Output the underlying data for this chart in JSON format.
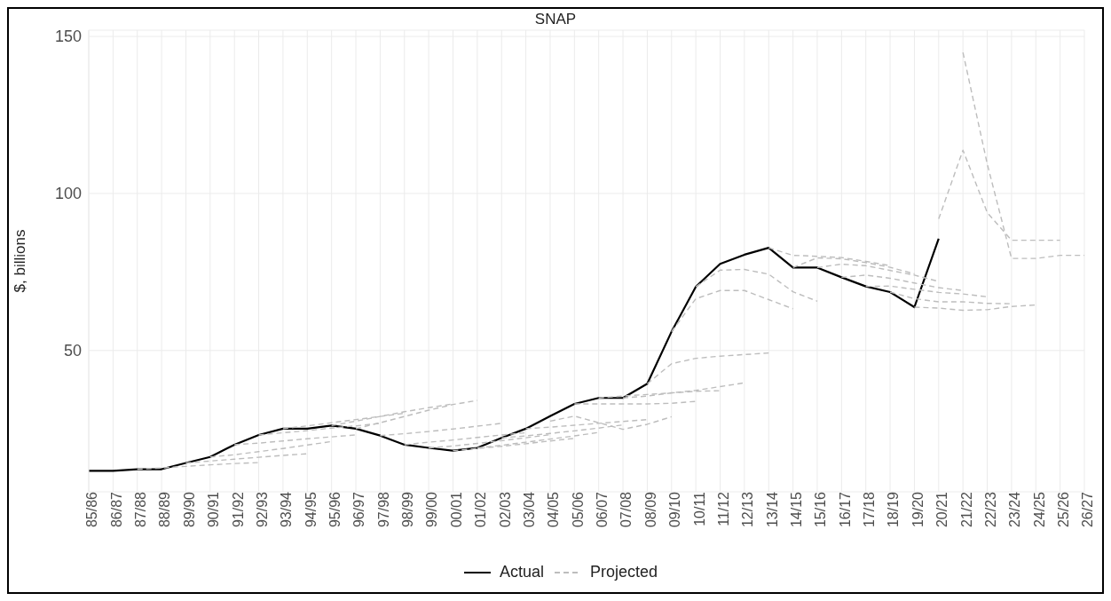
{
  "chart_data": {
    "type": "line",
    "title": "SNAP",
    "ylabel": "$, billions",
    "categories": [
      "85/86",
      "86/87",
      "87/88",
      "88/89",
      "89/90",
      "90/91",
      "91/92",
      "92/93",
      "93/94",
      "94/95",
      "95/96",
      "96/97",
      "97/98",
      "98/99",
      "99/00",
      "00/01",
      "01/02",
      "02/03",
      "03/04",
      "04/05",
      "05/06",
      "06/07",
      "07/08",
      "08/09",
      "09/10",
      "10/11",
      "11/12",
      "12/13",
      "13/14",
      "14/15",
      "15/16",
      "16/17",
      "17/18",
      "18/19",
      "19/20",
      "20/21",
      "21/22",
      "22/23",
      "23/24",
      "24/25",
      "25/26",
      "26/27"
    ],
    "ylim": [
      5,
      152
    ],
    "yticks": [
      50,
      100,
      150
    ],
    "grid": true,
    "legend": "bottom",
    "marker": "none",
    "series": [
      {
        "name": "Actual",
        "color": "#000000",
        "line_style": "solid",
        "values": [
          11.7,
          11.7,
          12.2,
          12.2,
          14.2,
          16.1,
          20.0,
          23.1,
          25.1,
          25.1,
          26.1,
          25.1,
          22.9,
          20.0,
          19.0,
          18.1,
          19.0,
          22.2,
          25.1,
          29.1,
          33.0,
          34.9,
          34.9,
          39.4,
          56.0,
          70.3,
          77.6,
          80.5,
          82.7,
          76.4,
          76.4,
          73.3,
          70.4,
          68.6,
          63.8,
          85.6,
          null,
          null,
          null,
          null,
          null,
          null
        ]
      },
      {
        "name": "Projected",
        "color": "#bdbdbd",
        "line_style": "dashed",
        "values": [
          null,
          null,
          12.2,
          12.6,
          13.1,
          13.6,
          14.0,
          14.3,
          null,
          null,
          null,
          null,
          null,
          null,
          null,
          null,
          null,
          null,
          null,
          null,
          null,
          null,
          null,
          null,
          null,
          null,
          null,
          null,
          null,
          null,
          null,
          null,
          null,
          null,
          null,
          null,
          null,
          null,
          null,
          null,
          null,
          null
        ]
      },
      {
        "color": "#bdbdbd",
        "line_style": "dashed",
        "values": [
          null,
          null,
          null,
          null,
          14.2,
          14.8,
          15.4,
          16.0,
          16.6,
          17.1,
          null,
          null,
          null,
          null,
          null,
          null,
          null,
          null,
          null,
          null,
          null,
          null,
          null,
          null,
          null,
          null,
          null,
          null,
          null,
          null,
          null,
          null,
          null,
          null,
          null,
          null,
          null,
          null,
          null,
          null,
          null,
          null
        ]
      },
      {
        "color": "#bdbdbd",
        "line_style": "dashed",
        "values": [
          null,
          null,
          null,
          null,
          null,
          16.1,
          16.8,
          17.8,
          18.8,
          19.9,
          21.0,
          null,
          null,
          null,
          null,
          null,
          null,
          null,
          null,
          null,
          null,
          null,
          null,
          null,
          null,
          null,
          null,
          null,
          null,
          null,
          null,
          null,
          null,
          null,
          null,
          null,
          null,
          null,
          null,
          null,
          null,
          null
        ]
      },
      {
        "color": "#bdbdbd",
        "line_style": "dashed",
        "values": [
          null,
          null,
          null,
          null,
          null,
          null,
          20.0,
          20.5,
          21.2,
          21.9,
          22.5,
          23.1,
          null,
          null,
          null,
          null,
          null,
          null,
          null,
          null,
          null,
          null,
          null,
          null,
          null,
          null,
          null,
          null,
          null,
          null,
          null,
          null,
          null,
          null,
          null,
          null,
          null,
          null,
          null,
          null,
          null,
          null
        ]
      },
      {
        "color": "#bdbdbd",
        "line_style": "dashed",
        "values": [
          null,
          null,
          null,
          null,
          null,
          null,
          null,
          23.1,
          23.8,
          24.5,
          25.3,
          26.0,
          26.8,
          null,
          null,
          null,
          null,
          null,
          null,
          null,
          null,
          null,
          null,
          null,
          null,
          null,
          null,
          null,
          null,
          null,
          null,
          null,
          null,
          null,
          null,
          null,
          null,
          null,
          null,
          null,
          null,
          null
        ]
      },
      {
        "color": "#bdbdbd",
        "line_style": "dashed",
        "values": [
          null,
          null,
          null,
          null,
          null,
          null,
          null,
          null,
          25.1,
          26.0,
          27.0,
          28.0,
          29.0,
          30.0,
          null,
          null,
          null,
          null,
          null,
          null,
          null,
          null,
          null,
          null,
          null,
          null,
          null,
          null,
          null,
          null,
          null,
          null,
          null,
          null,
          null,
          null,
          null,
          null,
          null,
          null,
          null,
          null
        ]
      },
      {
        "color": "#bdbdbd",
        "line_style": "dashed",
        "values": [
          null,
          null,
          null,
          null,
          null,
          null,
          null,
          null,
          null,
          null,
          26.1,
          27.5,
          29.0,
          30.5,
          31.8,
          33.0,
          null,
          null,
          null,
          null,
          null,
          null,
          null,
          null,
          null,
          null,
          null,
          null,
          null,
          null,
          null,
          null,
          null,
          null,
          null,
          null,
          null,
          null,
          null,
          null,
          null,
          null
        ]
      },
      {
        "color": "#bdbdbd",
        "line_style": "dashed",
        "values": [
          null,
          null,
          null,
          null,
          null,
          null,
          null,
          null,
          null,
          null,
          null,
          25.1,
          27.0,
          29.0,
          31.0,
          32.8,
          34.1,
          null,
          null,
          null,
          null,
          null,
          null,
          null,
          null,
          null,
          null,
          null,
          null,
          null,
          null,
          null,
          null,
          null,
          null,
          null,
          null,
          null,
          null,
          null,
          null,
          null
        ]
      },
      {
        "color": "#bdbdbd",
        "line_style": "dashed",
        "values": [
          null,
          null,
          null,
          null,
          null,
          null,
          null,
          null,
          null,
          null,
          null,
          null,
          22.9,
          23.5,
          24.2,
          25.0,
          25.9,
          26.8,
          null,
          null,
          null,
          null,
          null,
          null,
          null,
          null,
          null,
          null,
          null,
          null,
          null,
          null,
          null,
          null,
          null,
          null,
          null,
          null,
          null,
          null,
          null,
          null
        ]
      },
      {
        "color": "#bdbdbd",
        "line_style": "dashed",
        "values": [
          null,
          null,
          null,
          null,
          null,
          null,
          null,
          null,
          null,
          null,
          null,
          null,
          null,
          20.0,
          20.8,
          21.5,
          22.3,
          23.1,
          23.8,
          null,
          null,
          null,
          null,
          null,
          null,
          null,
          null,
          null,
          null,
          null,
          null,
          null,
          null,
          null,
          null,
          null,
          null,
          null,
          null,
          null,
          null,
          null
        ]
      },
      {
        "color": "#bdbdbd",
        "line_style": "dashed",
        "values": [
          null,
          null,
          null,
          null,
          null,
          null,
          null,
          null,
          null,
          null,
          null,
          null,
          null,
          null,
          19.0,
          19.6,
          20.4,
          21.3,
          22.2,
          23.2,
          null,
          null,
          null,
          null,
          null,
          null,
          null,
          null,
          null,
          null,
          null,
          null,
          null,
          null,
          null,
          null,
          null,
          null,
          null,
          null,
          null,
          null
        ]
      },
      {
        "color": "#bdbdbd",
        "line_style": "dashed",
        "values": [
          null,
          null,
          null,
          null,
          null,
          null,
          null,
          null,
          null,
          null,
          null,
          null,
          null,
          null,
          null,
          18.1,
          18.8,
          19.5,
          20.3,
          21.2,
          22.0,
          null,
          null,
          null,
          null,
          null,
          null,
          null,
          null,
          null,
          null,
          null,
          null,
          null,
          null,
          null,
          null,
          null,
          null,
          null,
          null,
          null
        ]
      },
      {
        "color": "#bdbdbd",
        "line_style": "dashed",
        "values": [
          null,
          null,
          null,
          null,
          null,
          null,
          null,
          null,
          null,
          null,
          null,
          null,
          null,
          null,
          null,
          null,
          19.0,
          19.8,
          20.8,
          21.8,
          22.8,
          23.9,
          null,
          null,
          null,
          null,
          null,
          null,
          null,
          null,
          null,
          null,
          null,
          null,
          null,
          null,
          null,
          null,
          null,
          null,
          null,
          null
        ]
      },
      {
        "color": "#bdbdbd",
        "line_style": "dashed",
        "values": [
          null,
          null,
          null,
          null,
          null,
          null,
          null,
          null,
          null,
          null,
          null,
          null,
          null,
          null,
          null,
          null,
          null,
          22.2,
          22.8,
          23.6,
          24.4,
          25.3,
          26.3,
          null,
          null,
          null,
          null,
          null,
          null,
          null,
          null,
          null,
          null,
          null,
          null,
          null,
          null,
          null,
          null,
          null,
          null,
          null
        ]
      },
      {
        "color": "#bdbdbd",
        "line_style": "dashed",
        "values": [
          null,
          null,
          null,
          null,
          null,
          null,
          null,
          null,
          null,
          null,
          null,
          null,
          null,
          null,
          null,
          null,
          null,
          null,
          25.1,
          25.6,
          26.2,
          26.8,
          27.4,
          28.0,
          null,
          null,
          null,
          null,
          null,
          null,
          null,
          null,
          null,
          null,
          null,
          null,
          null,
          null,
          null,
          null,
          null,
          null
        ]
      },
      {
        "color": "#bdbdbd",
        "line_style": "dashed",
        "values": [
          null,
          null,
          null,
          null,
          null,
          null,
          null,
          null,
          null,
          null,
          null,
          null,
          null,
          null,
          null,
          null,
          null,
          null,
          null,
          27.5,
          29.1,
          27.0,
          24.9,
          26.5,
          28.9,
          null,
          null,
          null,
          null,
          null,
          null,
          null,
          null,
          null,
          null,
          null,
          null,
          null,
          null,
          null,
          null,
          null
        ]
      },
      {
        "color": "#bdbdbd",
        "line_style": "dashed",
        "values": [
          null,
          null,
          null,
          null,
          null,
          null,
          null,
          null,
          null,
          null,
          null,
          null,
          null,
          null,
          null,
          null,
          null,
          null,
          null,
          null,
          33.0,
          33.0,
          33.0,
          33.0,
          33.2,
          33.8,
          null,
          null,
          null,
          null,
          null,
          null,
          null,
          null,
          null,
          null,
          null,
          null,
          null,
          null,
          null,
          null
        ]
      },
      {
        "color": "#bdbdbd",
        "line_style": "dashed",
        "values": [
          null,
          null,
          null,
          null,
          null,
          null,
          null,
          null,
          null,
          null,
          null,
          null,
          null,
          null,
          null,
          null,
          null,
          null,
          null,
          null,
          null,
          34.9,
          35.5,
          36.0,
          36.5,
          37.0,
          37.2,
          null,
          null,
          null,
          null,
          null,
          null,
          null,
          null,
          null,
          null,
          null,
          null,
          null,
          null,
          null
        ]
      },
      {
        "color": "#bdbdbd",
        "line_style": "dashed",
        "values": [
          null,
          null,
          null,
          null,
          null,
          null,
          null,
          null,
          null,
          null,
          null,
          null,
          null,
          null,
          null,
          null,
          null,
          null,
          null,
          null,
          null,
          null,
          34.9,
          35.5,
          36.5,
          37.3,
          38.5,
          39.7,
          null,
          null,
          null,
          null,
          null,
          null,
          null,
          null,
          null,
          null,
          null,
          null,
          null,
          null
        ]
      },
      {
        "color": "#bdbdbd",
        "line_style": "dashed",
        "values": [
          null,
          null,
          null,
          null,
          null,
          null,
          null,
          null,
          null,
          null,
          null,
          null,
          null,
          null,
          null,
          null,
          null,
          null,
          null,
          null,
          null,
          null,
          null,
          39.4,
          45.8,
          47.5,
          48.2,
          48.7,
          49.2,
          null,
          null,
          null,
          null,
          null,
          null,
          null,
          null,
          null,
          null,
          null,
          null,
          null
        ]
      },
      {
        "color": "#bdbdbd",
        "line_style": "dashed",
        "values": [
          null,
          null,
          null,
          null,
          null,
          null,
          null,
          null,
          null,
          null,
          null,
          null,
          null,
          null,
          null,
          null,
          null,
          null,
          null,
          null,
          null,
          null,
          null,
          null,
          56.0,
          66.5,
          69.1,
          69.1,
          66.2,
          63.3,
          null,
          null,
          null,
          null,
          null,
          null,
          null,
          null,
          null,
          null,
          null,
          null
        ]
      },
      {
        "color": "#bdbdbd",
        "line_style": "dashed",
        "values": [
          null,
          null,
          null,
          null,
          null,
          null,
          null,
          null,
          null,
          null,
          null,
          null,
          null,
          null,
          null,
          null,
          null,
          null,
          null,
          null,
          null,
          null,
          null,
          null,
          null,
          70.3,
          75.6,
          75.8,
          74.3,
          68.7,
          65.7,
          null,
          null,
          null,
          null,
          null,
          null,
          null,
          null,
          null,
          null,
          null
        ]
      },
      {
        "color": "#bdbdbd",
        "line_style": "dashed",
        "values": [
          null,
          null,
          null,
          null,
          null,
          null,
          null,
          null,
          null,
          null,
          null,
          null,
          null,
          null,
          null,
          null,
          null,
          null,
          null,
          null,
          null,
          null,
          null,
          null,
          null,
          null,
          null,
          null,
          82.7,
          80.3,
          80.0,
          79.6,
          78.4,
          77.0,
          null,
          null,
          null,
          null,
          null,
          null,
          null,
          null
        ]
      },
      {
        "color": "#bdbdbd",
        "line_style": "dashed",
        "values": [
          null,
          null,
          null,
          null,
          null,
          null,
          null,
          null,
          null,
          null,
          null,
          null,
          null,
          null,
          null,
          null,
          null,
          null,
          null,
          null,
          null,
          null,
          null,
          null,
          null,
          null,
          null,
          null,
          null,
          76.4,
          79.5,
          79.2,
          78.0,
          76.5,
          74.4,
          null,
          null,
          null,
          null,
          null,
          null,
          null
        ]
      },
      {
        "color": "#bdbdbd",
        "line_style": "dashed",
        "values": [
          null,
          null,
          null,
          null,
          null,
          null,
          null,
          null,
          null,
          null,
          null,
          null,
          null,
          null,
          null,
          null,
          null,
          null,
          null,
          null,
          null,
          null,
          null,
          null,
          null,
          null,
          null,
          null,
          null,
          null,
          76.4,
          77.5,
          77.0,
          75.5,
          74.0,
          72.0,
          null,
          null,
          null,
          null,
          null,
          null
        ]
      },
      {
        "color": "#bdbdbd",
        "line_style": "dashed",
        "values": [
          null,
          null,
          null,
          null,
          null,
          null,
          null,
          null,
          null,
          null,
          null,
          null,
          null,
          null,
          null,
          null,
          null,
          null,
          null,
          null,
          null,
          null,
          null,
          null,
          null,
          null,
          null,
          null,
          null,
          null,
          null,
          73.3,
          74.0,
          73.0,
          71.5,
          70.0,
          69.1,
          null,
          null,
          null,
          null,
          null
        ]
      },
      {
        "color": "#bdbdbd",
        "line_style": "dashed",
        "values": [
          null,
          null,
          null,
          null,
          null,
          null,
          null,
          null,
          null,
          null,
          null,
          null,
          null,
          null,
          null,
          null,
          null,
          null,
          null,
          null,
          null,
          null,
          null,
          null,
          null,
          null,
          null,
          null,
          null,
          null,
          null,
          null,
          70.4,
          70.5,
          69.5,
          68.5,
          68.0,
          67.1,
          null,
          null,
          null,
          null
        ]
      },
      {
        "color": "#bdbdbd",
        "line_style": "dashed",
        "values": [
          null,
          null,
          null,
          null,
          null,
          null,
          null,
          null,
          null,
          null,
          null,
          null,
          null,
          null,
          null,
          null,
          null,
          null,
          null,
          null,
          null,
          null,
          null,
          null,
          null,
          null,
          null,
          null,
          null,
          null,
          null,
          null,
          null,
          68.6,
          66.5,
          65.5,
          65.5,
          65.0,
          64.9,
          null,
          null,
          null
        ]
      },
      {
        "color": "#bdbdbd",
        "line_style": "dashed",
        "values": [
          null,
          null,
          null,
          null,
          null,
          null,
          null,
          null,
          null,
          null,
          null,
          null,
          null,
          null,
          null,
          null,
          null,
          null,
          null,
          null,
          null,
          null,
          null,
          null,
          null,
          null,
          null,
          null,
          null,
          null,
          null,
          null,
          null,
          null,
          63.8,
          63.5,
          62.8,
          63.0,
          64.0,
          64.5,
          null,
          null
        ]
      },
      {
        "color": "#bdbdbd",
        "line_style": "dashed",
        "values": [
          null,
          null,
          null,
          null,
          null,
          null,
          null,
          null,
          null,
          null,
          null,
          null,
          null,
          null,
          null,
          null,
          null,
          null,
          null,
          null,
          null,
          null,
          null,
          null,
          null,
          null,
          null,
          null,
          null,
          null,
          null,
          null,
          null,
          null,
          null,
          91.9,
          113.8,
          93.9,
          85.1,
          85.1,
          85.1,
          null
        ]
      },
      {
        "color": "#bdbdbd",
        "line_style": "dashed",
        "values": [
          null,
          null,
          null,
          null,
          null,
          null,
          null,
          null,
          null,
          null,
          null,
          null,
          null,
          null,
          null,
          null,
          null,
          null,
          null,
          null,
          null,
          null,
          null,
          null,
          null,
          null,
          null,
          null,
          null,
          null,
          null,
          null,
          null,
          null,
          null,
          null,
          144.9,
          109.4,
          79.3,
          79.3,
          80.3,
          80.3
        ]
      }
    ]
  }
}
